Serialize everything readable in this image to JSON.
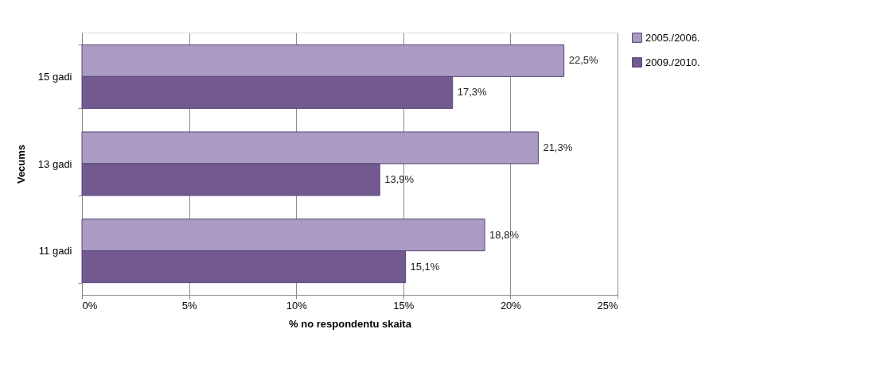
{
  "chart_data": {
    "type": "bar",
    "orientation": "horizontal",
    "xlabel": "% no respondentu skaita",
    "ylabel": "Vecums",
    "categories": [
      "15 gadi",
      "13 gadi",
      "11 gadi"
    ],
    "series": [
      {
        "name": "2005./2006.",
        "color": "#a99bc2",
        "values": [
          22.5,
          21.3,
          18.8
        ],
        "value_labels": [
          "22,5%",
          "21,3%",
          "18,8%"
        ]
      },
      {
        "name": "2009./2010.",
        "color": "#725a91",
        "values": [
          17.3,
          13.9,
          15.1
        ],
        "value_labels": [
          "17,3%",
          "13,9%",
          "15,1%"
        ]
      }
    ],
    "xlim": [
      0,
      25
    ],
    "xticks": [
      {
        "value": 0,
        "label": "0%"
      },
      {
        "value": 5,
        "label": "5%"
      },
      {
        "value": 10,
        "label": "10%"
      },
      {
        "value": 15,
        "label": "15%"
      },
      {
        "value": 20,
        "label": "20%"
      },
      {
        "value": 25,
        "label": "25%"
      }
    ],
    "grid": "x",
    "legend": "right"
  }
}
